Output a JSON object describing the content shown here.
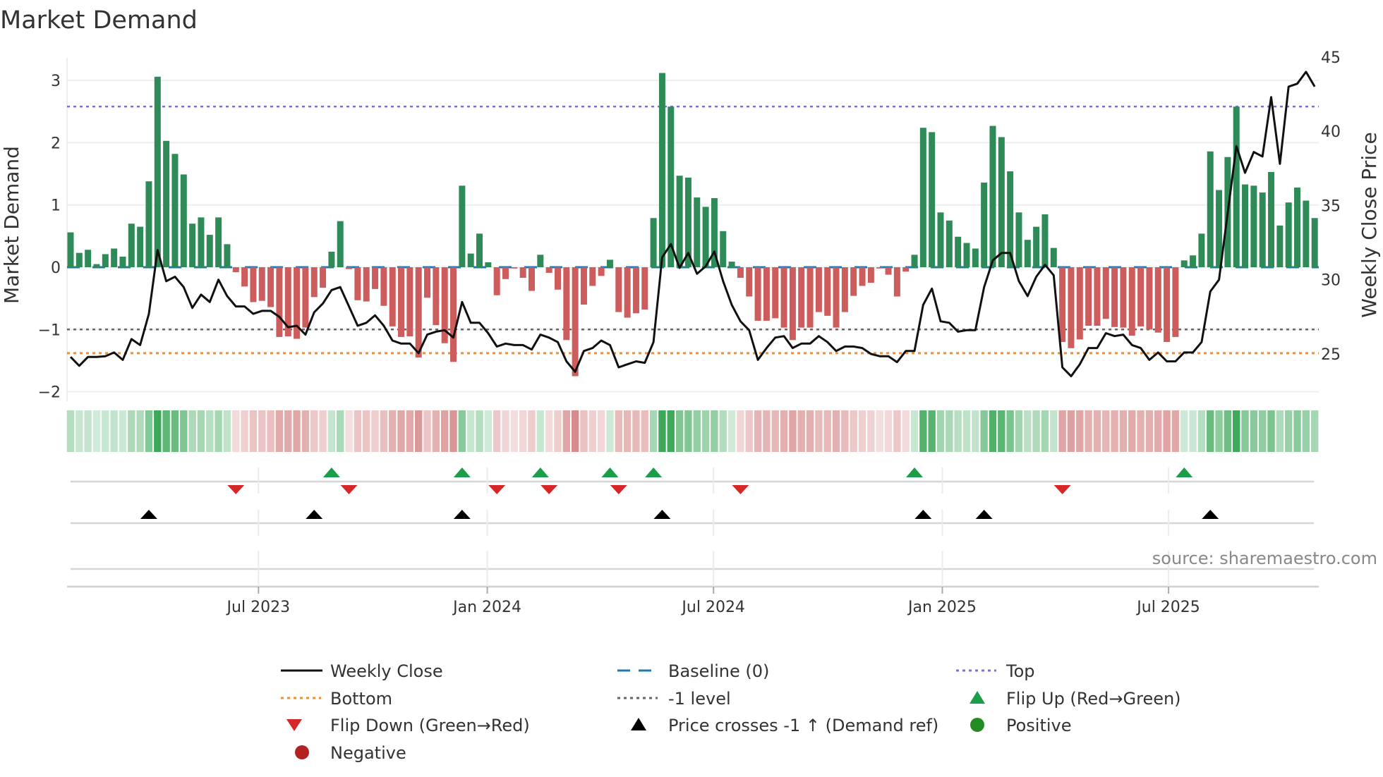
{
  "title": "Market Demand",
  "source": "source: sharemaestro.com",
  "colors": {
    "positive_bar": "#2e8b57",
    "negative_bar": "#cd5c5c",
    "price_line": "#111111",
    "baseline": "#1f77b4",
    "top": "#7b6fd0",
    "bottom": "#f28e2b",
    "minus_one": "#666666",
    "flip_up": "#1a9e4a",
    "flip_down": "#d62728",
    "price_cross": "#000000",
    "positive_dot": "#228b22",
    "negative_dot": "#b22222"
  },
  "legend": {
    "weekly_close": "Weekly Close",
    "baseline": "Baseline (0)",
    "top": "Top",
    "bottom": "Bottom",
    "minus_one": "-1 level",
    "flip_up": "Flip Up (Red→Green)",
    "flip_down": "Flip Down (Green→Red)",
    "price_cross": "Price crosses -1 ↑ (Demand ref)",
    "positive": "Positive",
    "negative": "Negative"
  },
  "chart_data": {
    "type": "bar",
    "title": "Market Demand",
    "ylabel": "Market Demand",
    "y2label": "Weekly Close Price",
    "ylim": [
      -2.2,
      3.35
    ],
    "y2lim": [
      22.3,
      45.8
    ],
    "yticks": [
      "3",
      "2",
      "1",
      "0",
      "−1",
      "−2"
    ],
    "ytick_values": [
      3,
      2,
      1,
      0,
      -1,
      -2
    ],
    "y2ticks": [
      "45",
      "40",
      "35",
      "30",
      "25"
    ],
    "y2tick_values": [
      45,
      40,
      35,
      30,
      25
    ],
    "xticks": [
      {
        "label": "Jul 2023",
        "week_index": 21.6
      },
      {
        "label": "Jan 2024",
        "week_index": 47.9
      },
      {
        "label": "Jul 2024",
        "week_index": 73.9
      },
      {
        "label": "Jan 2025",
        "week_index": 100.2
      },
      {
        "label": "Jul 2025",
        "week_index": 126.2
      }
    ],
    "levels": {
      "top": 2.58,
      "bottom": -1.38,
      "minus_one": -1,
      "baseline": 0
    },
    "demand": [
      0.56,
      0.23,
      0.28,
      0.05,
      0.21,
      0.3,
      0.17,
      0.7,
      0.65,
      1.38,
      3.06,
      2.03,
      1.82,
      1.49,
      0.7,
      0.8,
      0.52,
      0.8,
      0.37,
      -0.08,
      -0.31,
      -0.56,
      -0.54,
      -0.64,
      -1.12,
      -1.11,
      -1.15,
      -0.97,
      -0.48,
      -0.33,
      0.25,
      0.74,
      -0.03,
      -0.53,
      -0.55,
      -0.35,
      -0.62,
      -0.95,
      -1.12,
      -1.11,
      -1.45,
      -0.49,
      -0.93,
      -1.22,
      -1.52,
      1.31,
      0.22,
      0.54,
      0.08,
      -0.45,
      -0.19,
      -0.02,
      -0.17,
      -0.38,
      0.2,
      -0.09,
      -0.36,
      -1.17,
      -1.75,
      -0.6,
      -0.3,
      -0.14,
      0.12,
      -0.72,
      -0.81,
      -0.74,
      -0.68,
      0.79,
      3.12,
      2.58,
      1.47,
      1.44,
      1.12,
      0.97,
      1.11,
      0.58,
      0.09,
      -0.17,
      -0.47,
      -0.86,
      -0.86,
      -0.82,
      -0.97,
      -1.17,
      -0.97,
      -0.97,
      -0.72,
      -0.78,
      -0.97,
      -0.72,
      -0.46,
      -0.3,
      -0.25,
      -0.02,
      -0.12,
      -0.47,
      -0.07,
      0.2,
      2.24,
      2.17,
      0.88,
      0.75,
      0.49,
      0.39,
      0.3,
      1.36,
      2.27,
      2.09,
      1.54,
      0.88,
      0.44,
      0.65,
      0.85,
      0.31,
      -1.2,
      -1.3,
      -1.16,
      -0.94,
      -0.94,
      -0.83,
      -0.96,
      -0.97,
      -1.1,
      -0.95,
      -1.0,
      -1.05,
      -1.2,
      -1.12,
      0.11,
      0.19,
      0.54,
      1.86,
      1.24,
      1.77,
      2.58,
      1.33,
      1.31,
      1.2,
      1.53,
      0.67,
      1.04,
      1.28,
      1.07,
      0.79
    ],
    "weekly_close": [
      24.8,
      24.2,
      24.8,
      24.8,
      24.85,
      25.1,
      24.6,
      26.0,
      25.6,
      27.7,
      32.0,
      29.9,
      30.2,
      29.5,
      28.1,
      29.0,
      28.5,
      30.0,
      28.9,
      28.2,
      28.2,
      27.7,
      27.9,
      27.9,
      27.5,
      26.8,
      26.9,
      26.3,
      27.8,
      28.4,
      29.3,
      29.5,
      28.2,
      26.9,
      27.1,
      27.6,
      26.9,
      25.9,
      25.7,
      25.7,
      25.05,
      26.3,
      26.5,
      26.6,
      26.1,
      28.5,
      27.1,
      27.1,
      26.4,
      25.5,
      25.7,
      25.6,
      25.6,
      25.3,
      26.3,
      26.1,
      25.8,
      24.5,
      23.8,
      25.2,
      25.4,
      25.9,
      25.6,
      24.1,
      24.3,
      24.5,
      24.4,
      25.8,
      31.5,
      32.4,
      30.8,
      31.8,
      30.4,
      30.9,
      31.9,
      29.9,
      28.3,
      27.2,
      26.6,
      24.6,
      25.4,
      26.1,
      26.2,
      25.4,
      25.7,
      25.7,
      26.2,
      25.8,
      25.2,
      25.5,
      25.5,
      25.4,
      25.0,
      24.85,
      24.85,
      24.45,
      25.2,
      25.2,
      28.3,
      29.4,
      27.2,
      27.1,
      26.5,
      26.6,
      26.6,
      29.5,
      31.3,
      31.8,
      31.8,
      29.9,
      28.9,
      30.2,
      31.0,
      30.3,
      24.1,
      23.5,
      24.3,
      25.4,
      25.4,
      26.4,
      26.2,
      26.3,
      25.6,
      25.4,
      24.6,
      25.1,
      24.5,
      24.5,
      25.1,
      25.1,
      25.8,
      29.2,
      30.0,
      34.5,
      39.0,
      37.2,
      38.6,
      38.3,
      42.3,
      37.8,
      43.0,
      43.2,
      44.0,
      43.0
    ],
    "flip_up_weeks": [
      30,
      45,
      54,
      62,
      67,
      97,
      128
    ],
    "flip_down_weeks": [
      19,
      32,
      49,
      55,
      63,
      77,
      114
    ],
    "price_cross_weeks": [
      9,
      28,
      45,
      68,
      98,
      105,
      131
    ],
    "legend_placement": "bottom"
  }
}
